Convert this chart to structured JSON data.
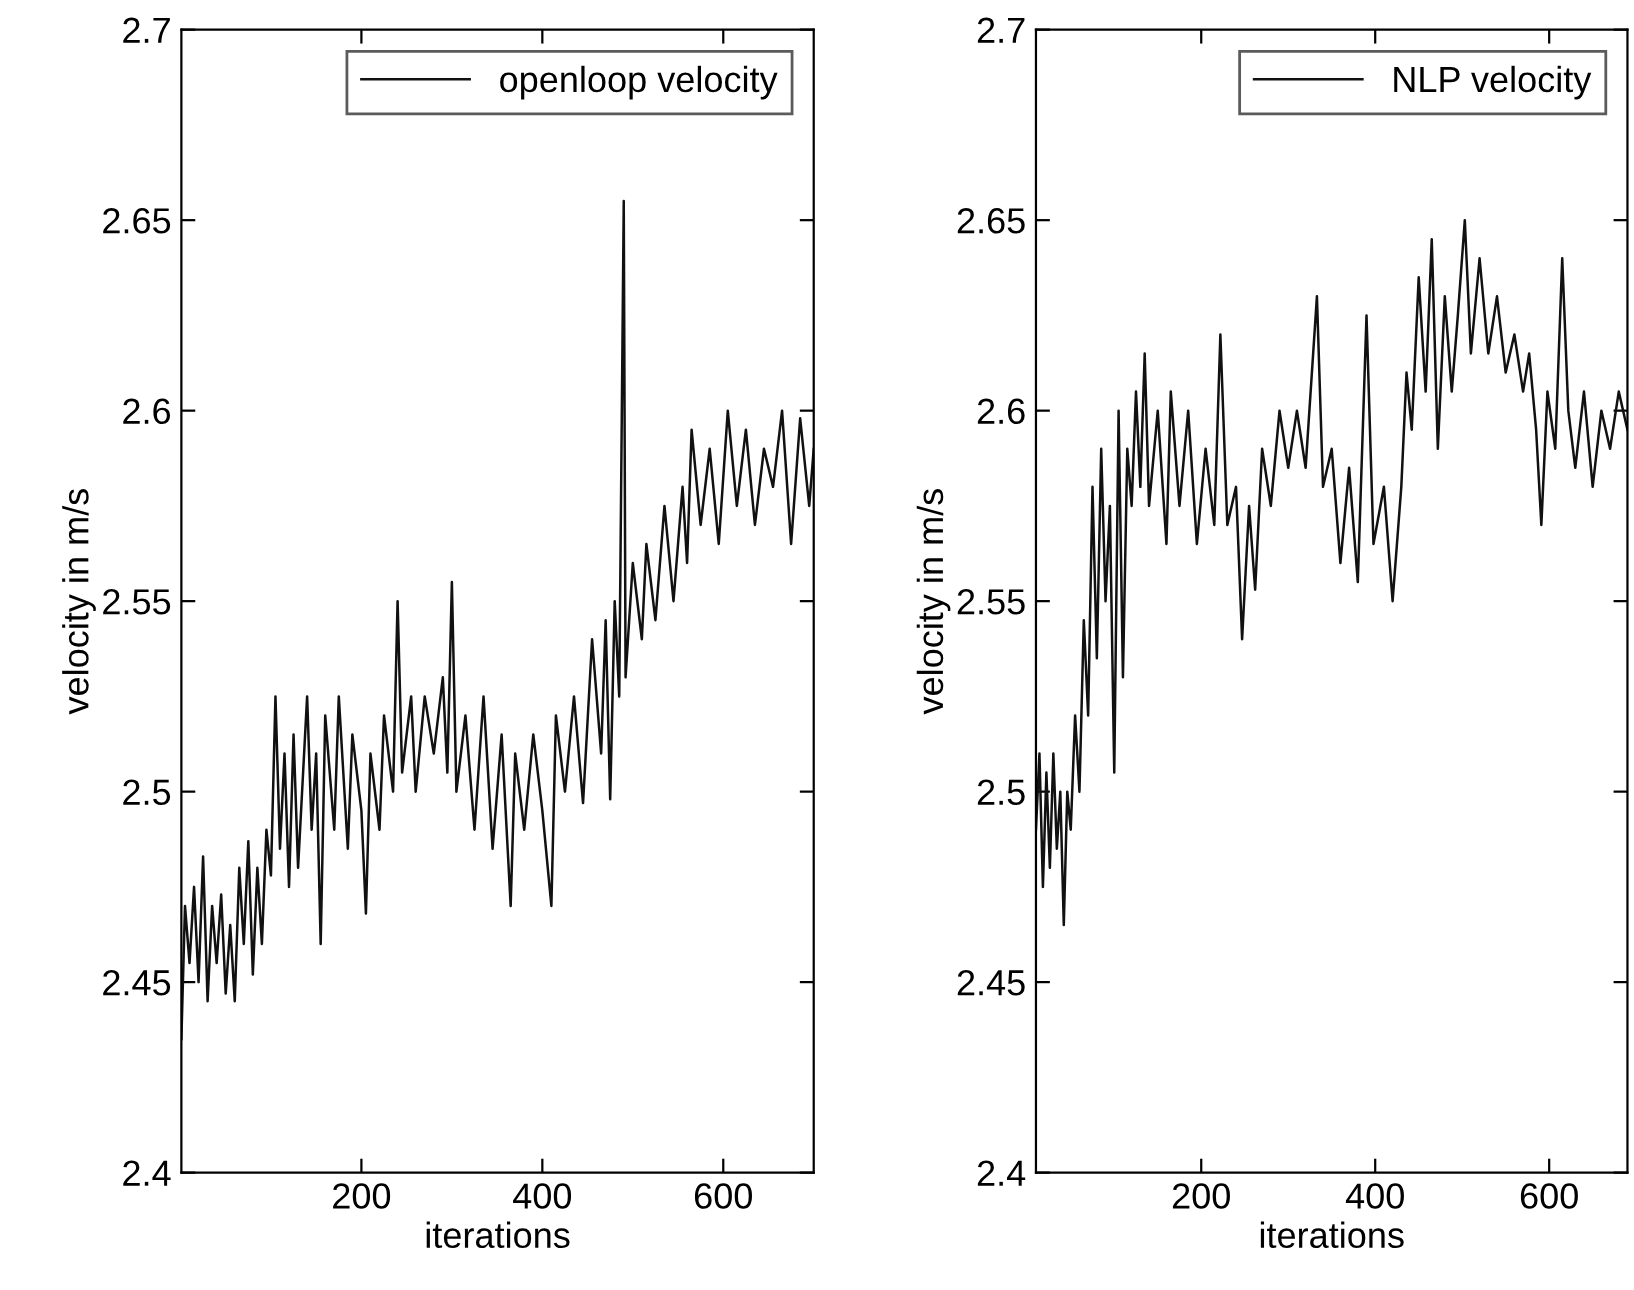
{
  "chart_data": [
    {
      "type": "line",
      "xlabel": "iterations",
      "ylabel": "velocity in m/s",
      "legend": "top right",
      "grid": false,
      "xlim": [
        1,
        700
      ],
      "xticks": [
        200,
        400,
        600
      ],
      "ylim": [
        2.4,
        2.7
      ],
      "yticks": [
        2.4,
        2.45,
        2.5,
        2.55,
        2.6,
        2.65,
        2.7
      ],
      "series": [
        {
          "name": "openloop velocity",
          "color": "#111111",
          "x": [
            1,
            5,
            10,
            15,
            20,
            25,
            30,
            35,
            40,
            45,
            50,
            55,
            60,
            65,
            70,
            75,
            80,
            85,
            90,
            95,
            100,
            105,
            110,
            115,
            120,
            125,
            130,
            140,
            145,
            150,
            155,
            160,
            170,
            175,
            185,
            190,
            200,
            205,
            210,
            220,
            225,
            235,
            240,
            245,
            255,
            260,
            270,
            280,
            290,
            295,
            300,
            305,
            315,
            325,
            335,
            345,
            355,
            365,
            370,
            380,
            390,
            400,
            410,
            415,
            425,
            435,
            445,
            455,
            465,
            470,
            475,
            480,
            485,
            490,
            492,
            500,
            510,
            515,
            525,
            535,
            545,
            555,
            560,
            565,
            575,
            585,
            595,
            605,
            615,
            625,
            635,
            645,
            655,
            665,
            675,
            685,
            695,
            700
          ],
          "values": [
            2.435,
            2.47,
            2.455,
            2.475,
            2.45,
            2.483,
            2.445,
            2.47,
            2.455,
            2.473,
            2.447,
            2.465,
            2.445,
            2.48,
            2.46,
            2.487,
            2.452,
            2.48,
            2.46,
            2.49,
            2.478,
            2.525,
            2.485,
            2.51,
            2.475,
            2.515,
            2.48,
            2.525,
            2.49,
            2.51,
            2.46,
            2.52,
            2.49,
            2.525,
            2.485,
            2.515,
            2.495,
            2.468,
            2.51,
            2.49,
            2.52,
            2.5,
            2.55,
            2.505,
            2.525,
            2.5,
            2.525,
            2.51,
            2.53,
            2.505,
            2.555,
            2.5,
            2.52,
            2.49,
            2.525,
            2.485,
            2.515,
            2.47,
            2.51,
            2.49,
            2.515,
            2.495,
            2.47,
            2.52,
            2.5,
            2.525,
            2.497,
            2.54,
            2.51,
            2.545,
            2.498,
            2.55,
            2.525,
            2.655,
            2.53,
            2.56,
            2.54,
            2.565,
            2.545,
            2.575,
            2.55,
            2.58,
            2.56,
            2.595,
            2.57,
            2.59,
            2.565,
            2.6,
            2.575,
            2.595,
            2.57,
            2.59,
            2.58,
            2.6,
            2.565,
            2.598,
            2.575,
            2.59
          ]
        }
      ]
    },
    {
      "type": "line",
      "xlabel": "iterations",
      "ylabel": "velocity in m/s",
      "legend": "top right",
      "grid": false,
      "xlim": [
        10,
        690
      ],
      "xticks": [
        200,
        400,
        600
      ],
      "ylim": [
        2.4,
        2.7
      ],
      "yticks": [
        2.4,
        2.45,
        2.5,
        2.55,
        2.6,
        2.65,
        2.7
      ],
      "series": [
        {
          "name": "NLP velocity",
          "color": "#111111",
          "x": [
            10,
            14,
            18,
            22,
            26,
            30,
            34,
            38,
            42,
            46,
            50,
            55,
            60,
            65,
            70,
            75,
            80,
            85,
            90,
            95,
            100,
            105,
            110,
            115,
            120,
            125,
            130,
            135,
            140,
            150,
            160,
            165,
            175,
            185,
            195,
            205,
            215,
            222,
            230,
            240,
            247,
            255,
            262,
            270,
            280,
            290,
            300,
            310,
            320,
            333,
            340,
            350,
            360,
            370,
            380,
            390,
            398,
            410,
            420,
            430,
            436,
            442,
            450,
            458,
            465,
            472,
            480,
            488,
            495,
            503,
            510,
            520,
            530,
            540,
            550,
            560,
            570,
            577,
            585,
            591,
            598,
            607,
            615,
            622,
            630,
            640,
            650,
            660,
            670,
            680,
            690
          ],
          "values": [
            2.49,
            2.51,
            2.475,
            2.505,
            2.48,
            2.51,
            2.485,
            2.5,
            2.465,
            2.5,
            2.49,
            2.52,
            2.5,
            2.545,
            2.52,
            2.58,
            2.535,
            2.59,
            2.55,
            2.575,
            2.505,
            2.6,
            2.53,
            2.59,
            2.575,
            2.605,
            2.58,
            2.615,
            2.575,
            2.6,
            2.565,
            2.605,
            2.575,
            2.6,
            2.565,
            2.59,
            2.57,
            2.62,
            2.57,
            2.58,
            2.54,
            2.575,
            2.553,
            2.59,
            2.575,
            2.6,
            2.585,
            2.6,
            2.585,
            2.63,
            2.58,
            2.59,
            2.56,
            2.585,
            2.555,
            2.625,
            2.565,
            2.58,
            2.55,
            2.58,
            2.61,
            2.595,
            2.635,
            2.605,
            2.645,
            2.59,
            2.63,
            2.605,
            2.625,
            2.65,
            2.615,
            2.64,
            2.615,
            2.63,
            2.61,
            2.62,
            2.605,
            2.615,
            2.595,
            2.57,
            2.605,
            2.59,
            2.64,
            2.6,
            2.585,
            2.605,
            2.58,
            2.6,
            2.59,
            2.605,
            2.595
          ]
        }
      ]
    }
  ]
}
